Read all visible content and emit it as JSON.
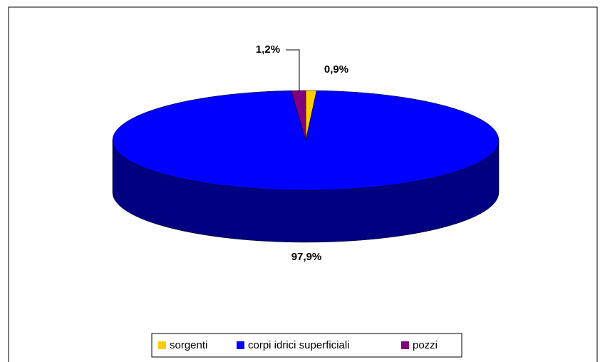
{
  "chart_data": {
    "type": "pie3d",
    "categories": [
      "sorgenti",
      "corpi idrici superficiali",
      "pozzi"
    ],
    "values": [
      0.9,
      97.9,
      1.2
    ],
    "value_labels": [
      "0,9%",
      "97,9%",
      "1,2%"
    ],
    "colors": [
      "#ffcc00",
      "#0000ff",
      "#800080"
    ],
    "legend": "bottom"
  }
}
